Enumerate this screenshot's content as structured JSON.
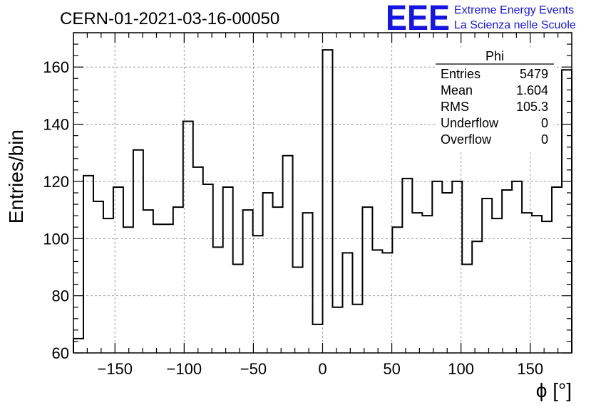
{
  "header": {
    "title": "CERN-01-2021-03-16-00050",
    "logo": "EEE",
    "logo_line1": "Extreme Energy Events",
    "logo_line2": "La Scienza nelle Scuole"
  },
  "stats_box": {
    "title": "Phi",
    "rows": [
      {
        "label": "Entries",
        "value": "5479"
      },
      {
        "label": "Mean",
        "value": "1.604"
      },
      {
        "label": "RMS",
        "value": "105.3"
      },
      {
        "label": "Underflow",
        "value": "0"
      },
      {
        "label": "Overflow",
        "value": "0"
      }
    ]
  },
  "chart_data": {
    "type": "bar",
    "style": "step-histogram",
    "title": "CERN-01-2021-03-16-00050",
    "xlabel": "ϕ [°]",
    "ylabel": "Entries/bin",
    "xlim": [
      -180,
      180
    ],
    "ylim": [
      60,
      172
    ],
    "bin_width": 7.2,
    "x_ticks": [
      -150,
      -100,
      -50,
      0,
      50,
      100,
      150
    ],
    "x_tick_labels": [
      "−150",
      "−100",
      "−50",
      "0",
      "50",
      "100",
      "150"
    ],
    "y_ticks": [
      60,
      80,
      100,
      120,
      140,
      160
    ],
    "y_tick_labels": [
      "60",
      "80",
      "100",
      "120",
      "140",
      "160"
    ],
    "grid": true,
    "legend": "none",
    "values": [
      65,
      122,
      113,
      107,
      118,
      104,
      131,
      110,
      105,
      105,
      111,
      141,
      125,
      119,
      97,
      118,
      91,
      110,
      101,
      116,
      111,
      129,
      90,
      109,
      70,
      166,
      76,
      95,
      77,
      111,
      96,
      95,
      104,
      121,
      109,
      108,
      120,
      116,
      120,
      91,
      99,
      114,
      107,
      117,
      120,
      109,
      108,
      106,
      118,
      159
    ]
  }
}
